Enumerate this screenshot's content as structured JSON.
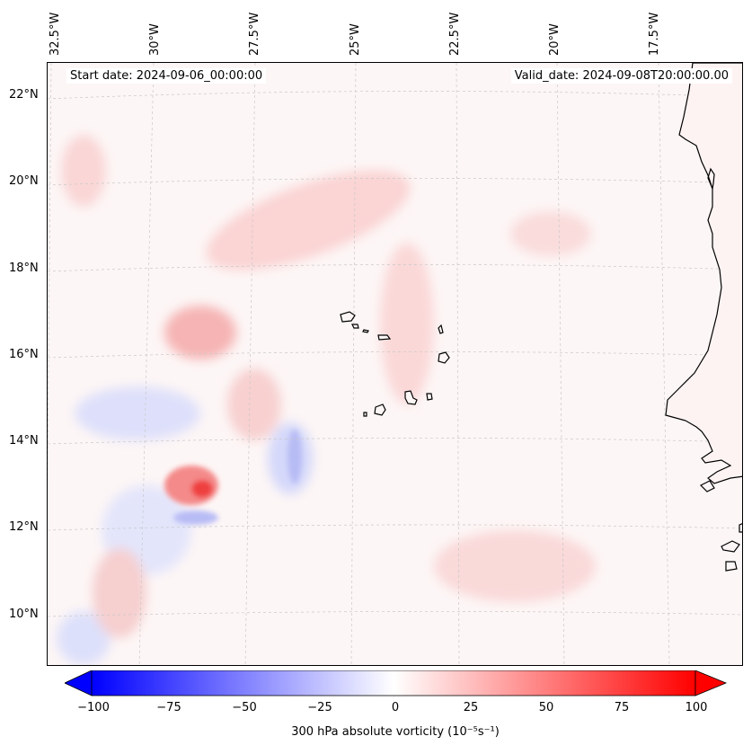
{
  "header": {
    "start_date": "Start date: 2024-09-06_00:00:00",
    "valid_date": "Valid_date: 2024-09-08T20:00:00.00"
  },
  "axes": {
    "lon_labels": [
      "32.5°W",
      "30°W",
      "27.5°W",
      "25°W",
      "22.5°W",
      "20°W",
      "17.5°W"
    ],
    "lat_labels": [
      "22°N",
      "20°N",
      "18°N",
      "16°N",
      "14°N",
      "12°N",
      "10°N"
    ],
    "gridlines": true
  },
  "colorbar": {
    "ticks": [
      "−100",
      "−75",
      "−50",
      "−25",
      "0",
      "25",
      "50",
      "75",
      "100"
    ],
    "range": [
      -100,
      100
    ],
    "label": "300 hPa absolute vorticity (10⁻⁵s⁻¹)",
    "min_color": "#0000ff",
    "mid_color": "#ffffff",
    "max_color": "#ff0000",
    "extend": "both"
  },
  "map": {
    "extent_lon": [
      -33,
      -16
    ],
    "extent_lat": [
      9,
      23
    ],
    "coastline_color": "#000000",
    "field": "300 hPa absolute vorticity",
    "features": [
      "Cape Verde islands",
      "West African coast"
    ]
  }
}
